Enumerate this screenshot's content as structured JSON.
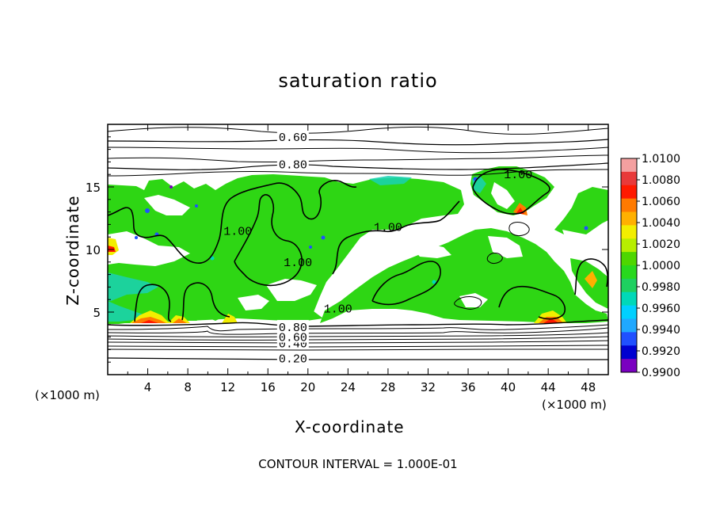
{
  "chart_data": {
    "type": "heatmap",
    "title": "saturation ratio",
    "xlabel": "X-coordinate",
    "ylabel": "Z-coordinate",
    "x_unit_label_left": "(×1000 m)",
    "x_unit_label_right": "(×1000 m)",
    "xlim": [
      0,
      50
    ],
    "ylim": [
      0,
      20
    ],
    "x_ticks": [
      4,
      8,
      12,
      16,
      20,
      24,
      28,
      32,
      36,
      40,
      44,
      48
    ],
    "y_ticks": [
      5,
      10,
      15
    ],
    "colorbar": {
      "ticks": [
        "1.0100",
        "1.0080",
        "1.0060",
        "1.0040",
        "1.0020",
        "1.0000",
        "0.9980",
        "0.9960",
        "0.9940",
        "0.9920",
        "0.9900"
      ],
      "range": [
        0.99,
        1.01
      ],
      "colors": [
        "#f4a0a0",
        "#e83a3a",
        "#ff1a00",
        "#ff7a00",
        "#ffb000",
        "#f2ee00",
        "#b7ee00",
        "#4ed600",
        "#28d81e",
        "#1ed060",
        "#00d8b8",
        "#00d0ff",
        "#20a8ff",
        "#2050ff",
        "#0000d0",
        "#7a00c0"
      ]
    },
    "contour_levels": [
      {
        "label": "0.20",
        "z": 1.3
      },
      {
        "label": "0.40",
        "z": 2.5
      },
      {
        "label": "0.60",
        "z": 3.0
      },
      {
        "label": "0.80",
        "z": 3.8
      },
      {
        "label": "0.80",
        "z": 16.8
      },
      {
        "label": "0.60",
        "z": 19.0
      },
      {
        "label": "1.00",
        "z": 16.0,
        "x": 41
      },
      {
        "label": "1.00",
        "z": 11.8,
        "x": 28
      },
      {
        "label": "1.00",
        "z": 11.5,
        "x": 13
      },
      {
        "label": "1.00",
        "z": 9.0,
        "x": 19
      },
      {
        "label": "1.00",
        "z": 5.3,
        "x": 23
      }
    ],
    "contour_interval": "CONTOUR INTERVAL = 1.000E-01",
    "grid": false,
    "legend_position": "right"
  }
}
